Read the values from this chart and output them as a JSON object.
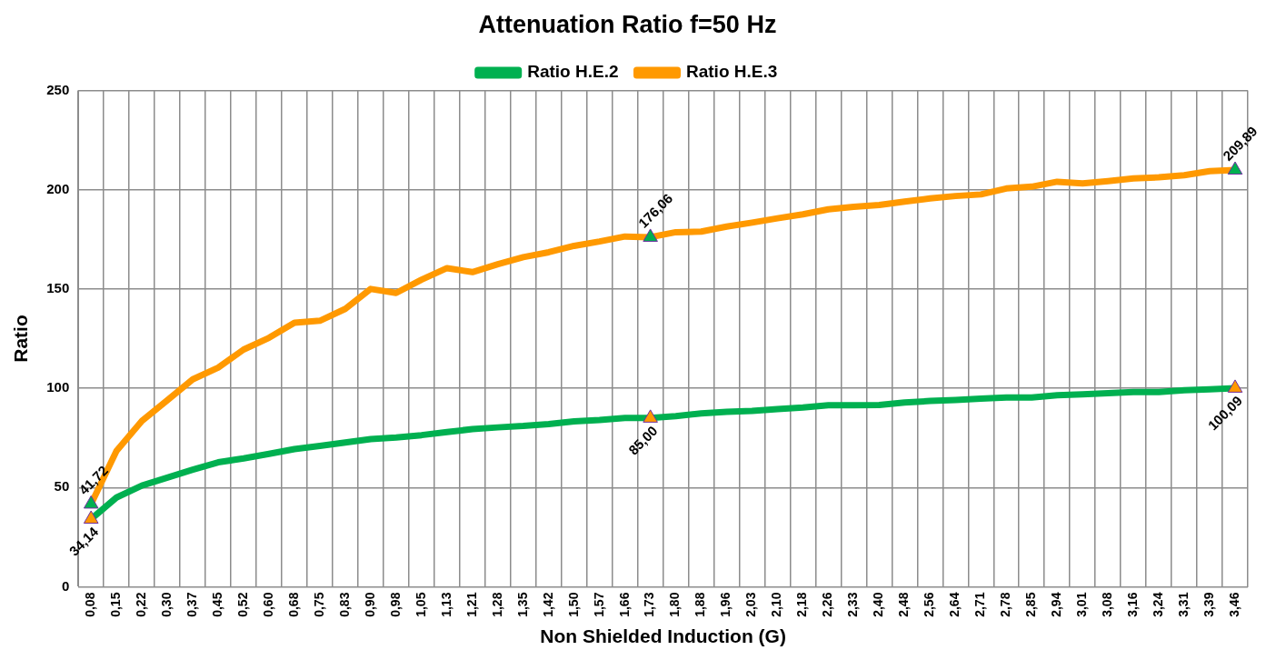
{
  "chart_data": {
    "type": "line",
    "title": "Attenuation Ratio f=50 Hz",
    "xlabel": "Non Shielded Induction (G)",
    "ylabel": "Ratio",
    "categories": [
      "0,08",
      "0,15",
      "0,22",
      "0,30",
      "0,37",
      "0,45",
      "0,52",
      "0,60",
      "0,68",
      "0,75",
      "0,83",
      "0,90",
      "0,98",
      "1,05",
      "1,13",
      "1,21",
      "1,28",
      "1,35",
      "1,42",
      "1,50",
      "1,57",
      "1,66",
      "1,73",
      "1,80",
      "1,88",
      "1,96",
      "2,03",
      "2,10",
      "2,18",
      "2,26",
      "2,33",
      "2,40",
      "2,48",
      "2,56",
      "2,64",
      "2,71",
      "2,78",
      "2,85",
      "2,94",
      "3,01",
      "3,08",
      "3,16",
      "3,24",
      "3,31",
      "3,39",
      "3,46"
    ],
    "series": [
      {
        "name": "Ratio H.E.2",
        "color": "#00b050",
        "marker": "none",
        "values": [
          34.14,
          45,
          51,
          55,
          59,
          62.7,
          64.7,
          67,
          69.4,
          71,
          72.7,
          74.4,
          75.2,
          76.4,
          78,
          79.4,
          80.3,
          81,
          82,
          83.3,
          84,
          85,
          85.0,
          86,
          87.3,
          88.1,
          88.6,
          89.5,
          90.3,
          91.5,
          91.5,
          91.6,
          92.8,
          93.6,
          94.1,
          94.8,
          95.3,
          95.3,
          96.5,
          97,
          97.5,
          98.1,
          98.1,
          99,
          99.5,
          100.09
        ]
      },
      {
        "name": "Ratio H.E.3",
        "color": "#ff9900",
        "marker": "none",
        "values": [
          41.72,
          68.5,
          83.6,
          94,
          104.5,
          110.4,
          119.5,
          125.4,
          133,
          134,
          140,
          150,
          148,
          154.7,
          160.5,
          158.5,
          162.5,
          166,
          168.5,
          171.7,
          173.9,
          176.4,
          176.06,
          178.6,
          178.9,
          181.4,
          183.4,
          185.6,
          187.6,
          190.1,
          191.4,
          192.3,
          194,
          195.6,
          196.8,
          197.6,
          200.6,
          201.5,
          204,
          203.1,
          204.3,
          205.7,
          206.2,
          207.3,
          209.3,
          209.89
        ]
      },
      {
        "type": "scatter",
        "color": "#00b050",
        "marker": "triangle",
        "values": [
          41.72,
          null,
          null,
          null,
          null,
          null,
          null,
          null,
          null,
          null,
          null,
          null,
          null,
          null,
          null,
          null,
          null,
          null,
          null,
          null,
          null,
          null,
          176.06,
          null,
          null,
          null,
          null,
          null,
          null,
          null,
          null,
          null,
          null,
          null,
          null,
          null,
          null,
          null,
          null,
          null,
          null,
          null,
          null,
          null,
          null,
          209.89
        ],
        "value_labels": [
          "41,72",
          null,
          null,
          null,
          null,
          null,
          null,
          null,
          null,
          null,
          null,
          null,
          null,
          null,
          null,
          null,
          null,
          null,
          null,
          null,
          null,
          null,
          "176,06",
          null,
          null,
          null,
          null,
          null,
          null,
          null,
          null,
          null,
          null,
          null,
          null,
          null,
          null,
          null,
          null,
          null,
          null,
          null,
          null,
          null,
          null,
          "209,89"
        ]
      },
      {
        "type": "scatter",
        "color": "#ff9900",
        "marker": "triangle",
        "values": [
          34.14,
          null,
          null,
          null,
          null,
          null,
          null,
          null,
          null,
          null,
          null,
          null,
          null,
          null,
          null,
          null,
          null,
          null,
          null,
          null,
          null,
          null,
          85.0,
          null,
          null,
          null,
          null,
          null,
          null,
          null,
          null,
          null,
          null,
          null,
          null,
          null,
          null,
          null,
          null,
          null,
          null,
          null,
          null,
          null,
          null,
          100.09
        ],
        "value_labels": [
          "34,14",
          null,
          null,
          null,
          null,
          null,
          null,
          null,
          null,
          null,
          null,
          null,
          null,
          null,
          null,
          null,
          null,
          null,
          null,
          null,
          null,
          null,
          "85,00",
          null,
          null,
          null,
          null,
          null,
          null,
          null,
          null,
          null,
          null,
          null,
          null,
          null,
          null,
          null,
          null,
          null,
          null,
          null,
          null,
          null,
          null,
          "100,09"
        ]
      }
    ],
    "ylim": [
      0,
      250
    ],
    "yticks": [
      0,
      50,
      100,
      150,
      200,
      250
    ],
    "grid": true,
    "legend": "top"
  }
}
